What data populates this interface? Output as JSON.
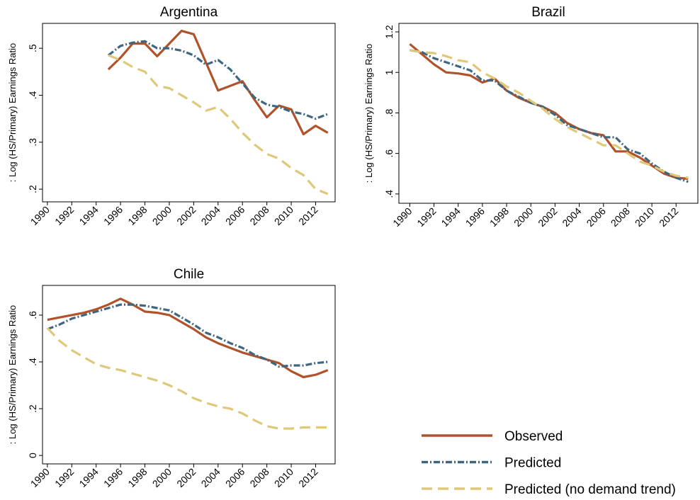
{
  "chart_data": [
    {
      "type": "line",
      "title": "Argentina",
      "y_label": ": Log (HS/Primary) Earnings Ratio",
      "x": [
        1995,
        1996,
        1997,
        1998,
        1999,
        2000,
        2001,
        2002,
        2003,
        2004,
        2005,
        2006,
        2007,
        2008,
        2009,
        2010,
        2011,
        2012,
        2013
      ],
      "xlim": [
        1989.6,
        2013.6
      ],
      "xticks": [
        1990,
        1992,
        1994,
        1996,
        1998,
        2000,
        2002,
        2004,
        2006,
        2008,
        2010,
        2012
      ],
      "ylim": [
        0.173,
        0.553
      ],
      "yticks": [
        {
          "value": 0.2,
          "label": ".2"
        },
        {
          "value": 0.3,
          "label": ".3"
        },
        {
          "value": 0.4,
          "label": ".4"
        },
        {
          "value": 0.5,
          "label": ".5"
        }
      ],
      "series": [
        {
          "name": "Observed",
          "color": "#b0522a",
          "style": "solid",
          "values": [
            0.455,
            0.48,
            0.51,
            0.51,
            0.483,
            0.51,
            0.537,
            0.53,
            0.47,
            0.41,
            0.42,
            0.43,
            0.39,
            0.353,
            0.378,
            0.37,
            0.317,
            0.335,
            0.32
          ]
        },
        {
          "name": "Predicted",
          "color": "#3e6680",
          "style": "dashdot",
          "values": [
            0.485,
            0.505,
            0.512,
            0.515,
            0.5,
            0.5,
            0.495,
            0.485,
            0.465,
            0.475,
            0.455,
            0.425,
            0.395,
            0.38,
            0.375,
            0.365,
            0.36,
            0.35,
            0.36
          ]
        },
        {
          "name": "Predicted (no demand trend)",
          "color": "#e0c87a",
          "style": "dash",
          "values": [
            0.485,
            0.475,
            0.46,
            0.45,
            0.42,
            0.415,
            0.4,
            0.385,
            0.367,
            0.375,
            0.35,
            0.32,
            0.295,
            0.275,
            0.265,
            0.245,
            0.23,
            0.2,
            0.19
          ]
        }
      ]
    },
    {
      "type": "line",
      "title": "Brazil",
      "y_label": ": Log (HS/Primary) Earnings Ratio",
      "x": [
        1990,
        1991,
        1992,
        1993,
        1994,
        1995,
        1996,
        1997,
        1998,
        1999,
        2000,
        2001,
        2002,
        2003,
        2004,
        2005,
        2006,
        2007,
        2008,
        2009,
        2010,
        2011,
        2012,
        2013
      ],
      "xlim": [
        1989.1,
        2013.8
      ],
      "xticks": [
        1990,
        1992,
        1994,
        1996,
        1998,
        2000,
        2002,
        2004,
        2006,
        2008,
        2010,
        2012
      ],
      "ylim": [
        0.354,
        1.242
      ],
      "yticks": [
        {
          "value": 0.4,
          "label": ".4"
        },
        {
          "value": 0.6,
          "label": ".6"
        },
        {
          "value": 0.8,
          "label": ".8"
        },
        1,
        1.2
      ],
      "series": [
        {
          "color": "#b0522a",
          "style": "solid",
          "values": [
            1.14,
            1.09,
            1.04,
            1.0,
            0.995,
            0.985,
            0.95,
            0.97,
            0.91,
            0.875,
            0.85,
            0.83,
            0.8,
            0.75,
            0.72,
            0.7,
            0.69,
            0.61,
            0.61,
            0.58,
            0.54,
            0.5,
            0.48,
            0.475
          ]
        },
        {
          "color": "#3e6680",
          "style": "dashdot",
          "values": [
            1.11,
            1.1,
            1.07,
            1.05,
            1.03,
            1.01,
            0.96,
            0.96,
            0.91,
            0.88,
            0.85,
            0.83,
            0.79,
            0.74,
            0.72,
            0.7,
            0.68,
            0.68,
            0.62,
            0.6,
            0.55,
            0.51,
            0.48,
            0.46
          ]
        },
        {
          "color": "#e0c87a",
          "style": "dash",
          "values": [
            1.11,
            1.1,
            1.095,
            1.08,
            1.06,
            1.05,
            1.0,
            0.97,
            0.93,
            0.9,
            0.86,
            0.82,
            0.77,
            0.73,
            0.7,
            0.67,
            0.64,
            0.64,
            0.6,
            0.56,
            0.54,
            0.51,
            0.49,
            0.48
          ]
        }
      ]
    },
    {
      "type": "line",
      "title": "Chile",
      "y_label": ": Log (HS/Primary) Earnings Ratio",
      "x": [
        1990,
        1991,
        1992,
        1993,
        1994,
        1995,
        1996,
        1997,
        1998,
        1999,
        2000,
        2001,
        2002,
        2003,
        2004,
        2005,
        2006,
        2007,
        2008,
        2009,
        2010,
        2011,
        2012,
        2013
      ],
      "xlim": [
        1989.6,
        2013.6
      ],
      "xticks": [
        1990,
        1992,
        1994,
        1996,
        1998,
        2000,
        2002,
        2004,
        2006,
        2008,
        2010,
        2012
      ],
      "ylim": [
        -0.036,
        0.727
      ],
      "yticks": [
        0,
        {
          "value": 0.2,
          "label": ".2"
        },
        {
          "value": 0.4,
          "label": ".4"
        },
        {
          "value": 0.6,
          "label": ".6"
        }
      ],
      "series": [
        {
          "color": "#b0522a",
          "style": "solid",
          "values": [
            0.58,
            0.59,
            0.6,
            0.61,
            0.625,
            0.645,
            0.67,
            0.645,
            0.615,
            0.61,
            0.6,
            0.57,
            0.54,
            0.505,
            0.48,
            0.46,
            0.44,
            0.425,
            0.41,
            0.395,
            0.36,
            0.335,
            0.345,
            0.365
          ]
        },
        {
          "color": "#3e6680",
          "style": "dashdot",
          "values": [
            0.54,
            0.56,
            0.585,
            0.6,
            0.615,
            0.63,
            0.645,
            0.645,
            0.64,
            0.63,
            0.62,
            0.59,
            0.56,
            0.525,
            0.505,
            0.48,
            0.46,
            0.43,
            0.41,
            0.38,
            0.385,
            0.385,
            0.395,
            0.4
          ]
        },
        {
          "color": "#e0c87a",
          "style": "dash",
          "values": [
            0.545,
            0.49,
            0.45,
            0.42,
            0.39,
            0.375,
            0.365,
            0.35,
            0.335,
            0.32,
            0.3,
            0.275,
            0.245,
            0.225,
            0.21,
            0.2,
            0.18,
            0.15,
            0.125,
            0.115,
            0.115,
            0.12,
            0.12,
            0.12
          ]
        }
      ]
    }
  ]
}
